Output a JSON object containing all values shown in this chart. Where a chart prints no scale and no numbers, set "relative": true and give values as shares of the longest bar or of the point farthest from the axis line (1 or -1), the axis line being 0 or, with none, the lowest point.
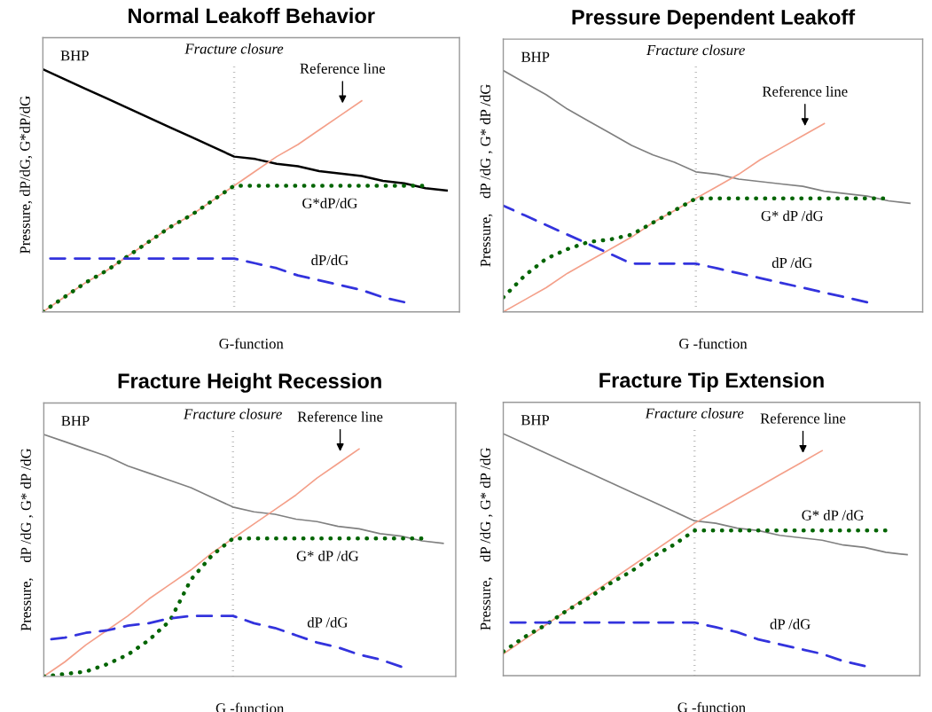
{
  "chart_data": [
    {
      "type": "line",
      "title": "Normal Leakoff Behavior",
      "xlabel": "G-function",
      "ylabel": "Pressure, dP/dG, G*dP/dG",
      "relative": true,
      "grid": false,
      "legend": false,
      "marker": "none",
      "categories": [
        null,
        null,
        null,
        null,
        null,
        null,
        null,
        null,
        null,
        null,
        null,
        null,
        null,
        null,
        null,
        null,
        null,
        null,
        null,
        null
      ],
      "annotations": [
        "Fracture closure"
      ],
      "series": [
        {
          "name": "BHP",
          "color": "#000000",
          "line_style": "solid",
          "values": [
            1.0,
            0.96,
            0.92,
            0.88,
            0.84,
            0.8,
            0.76,
            0.72,
            0.68,
            0.64,
            0.63,
            0.61,
            0.6,
            0.58,
            0.57,
            0.56,
            0.54,
            0.53,
            0.51,
            0.5
          ]
        },
        {
          "name": "Reference line",
          "color": "#f4a08a",
          "line_style": "solid",
          "values": [
            0,
            0.06,
            0.12,
            0.17,
            0.23,
            0.29,
            0.35,
            0.4,
            0.46,
            0.52,
            0.58,
            0.64,
            0.69,
            0.75,
            0.81,
            0.87,
            null,
            null,
            null,
            null
          ]
        },
        {
          "name": "G*dP/dG",
          "color": "#006400",
          "line_style": "dotted",
          "values": [
            0,
            0.06,
            0.12,
            0.17,
            0.23,
            0.29,
            0.35,
            0.4,
            0.46,
            0.52,
            0.52,
            0.52,
            0.52,
            0.52,
            0.52,
            0.52,
            0.52,
            0.52,
            0.52,
            null
          ]
        },
        {
          "name": "dP/dG",
          "color": "#3333dd",
          "line_style": "dashed",
          "values": [
            0.22,
            0.22,
            0.22,
            0.22,
            0.22,
            0.22,
            0.22,
            0.22,
            0.22,
            0.22,
            0.2,
            0.18,
            0.15,
            0.13,
            0.11,
            0.09,
            0.06,
            0.04,
            null,
            null
          ]
        }
      ]
    },
    {
      "type": "line",
      "title": "Pressure Dependent Leakoff",
      "xlabel": "G -function",
      "ylabel": "Pressure,    dP /dG , G* dP /dG",
      "relative": true,
      "grid": false,
      "legend": false,
      "marker": "none",
      "categories": [
        null,
        null,
        null,
        null,
        null,
        null,
        null,
        null,
        null,
        null,
        null,
        null,
        null,
        null,
        null,
        null,
        null,
        null,
        null,
        null
      ],
      "annotations": [
        "Fracture closure"
      ],
      "series": [
        {
          "name": "BHP",
          "color": "#808080",
          "line_style": "solid",
          "values": [
            1.0,
            0.95,
            0.9,
            0.84,
            0.79,
            0.74,
            0.69,
            0.65,
            0.62,
            0.58,
            0.57,
            0.55,
            0.54,
            0.53,
            0.52,
            0.5,
            0.49,
            0.48,
            0.46,
            0.45
          ]
        },
        {
          "name": "Reference line",
          "color": "#f4a08a",
          "line_style": "solid",
          "values": [
            0,
            0.05,
            0.1,
            0.16,
            0.21,
            0.26,
            0.31,
            0.37,
            0.42,
            0.47,
            0.52,
            0.57,
            0.63,
            0.68,
            0.73,
            0.78,
            null,
            null,
            null,
            null
          ]
        },
        {
          "name": "G* dP /dG",
          "color": "#006400",
          "line_style": "dotted",
          "values": [
            0.06,
            0.15,
            0.22,
            0.26,
            0.29,
            0.3,
            0.32,
            0.37,
            0.42,
            0.47,
            0.47,
            0.47,
            0.47,
            0.47,
            0.47,
            0.47,
            0.47,
            0.47,
            0.47,
            null
          ]
        },
        {
          "name": "dP /dG",
          "color": "#3333dd",
          "line_style": "dashed",
          "values": [
            0.44,
            0.4,
            0.36,
            0.32,
            0.28,
            0.24,
            0.2,
            0.2,
            0.2,
            0.2,
            0.18,
            0.16,
            0.14,
            0.12,
            0.1,
            0.08,
            0.06,
            0.04,
            null,
            null
          ]
        }
      ]
    },
    {
      "type": "line",
      "title": "Fracture Height Recession",
      "xlabel": "G -function",
      "ylabel": "Pressure,    dP /dG , G* dP /dG",
      "relative": true,
      "grid": false,
      "legend": false,
      "marker": "none",
      "categories": [
        null,
        null,
        null,
        null,
        null,
        null,
        null,
        null,
        null,
        null,
        null,
        null,
        null,
        null,
        null,
        null,
        null,
        null,
        null,
        null
      ],
      "annotations": [
        "Fracture closure"
      ],
      "series": [
        {
          "name": "BHP",
          "color": "#808080",
          "line_style": "solid",
          "values": [
            1.0,
            0.97,
            0.94,
            0.91,
            0.87,
            0.84,
            0.81,
            0.78,
            0.74,
            0.7,
            0.68,
            0.67,
            0.65,
            0.64,
            0.62,
            0.61,
            0.59,
            0.58,
            0.56,
            0.55
          ]
        },
        {
          "name": "Reference line",
          "color": "#f4a08a",
          "line_style": "solid",
          "values": [
            0,
            0.06,
            0.13,
            0.19,
            0.25,
            0.32,
            0.38,
            0.44,
            0.51,
            0.57,
            0.63,
            0.69,
            0.75,
            0.82,
            0.88,
            0.94,
            null,
            null,
            null,
            null
          ]
        },
        {
          "name": "G* dP /dG",
          "color": "#006400",
          "line_style": "dotted",
          "values": [
            0,
            0.01,
            0.02,
            0.05,
            0.09,
            0.15,
            0.23,
            0.4,
            0.5,
            0.57,
            0.57,
            0.57,
            0.57,
            0.57,
            0.57,
            0.57,
            0.57,
            0.57,
            0.57,
            null
          ]
        },
        {
          "name": "dP /dG",
          "color": "#3333dd",
          "line_style": "dashed",
          "values": [
            0.15,
            0.16,
            0.18,
            0.19,
            0.21,
            0.22,
            0.24,
            0.25,
            0.25,
            0.25,
            0.22,
            0.2,
            0.17,
            0.14,
            0.12,
            0.09,
            0.07,
            0.04,
            null,
            null
          ]
        }
      ]
    },
    {
      "type": "line",
      "title": "Fracture Tip Extension",
      "xlabel": "G -function",
      "ylabel": "Pressure,    dP /dG , G* dP /dG",
      "relative": true,
      "grid": false,
      "legend": false,
      "marker": "none",
      "categories": [
        null,
        null,
        null,
        null,
        null,
        null,
        null,
        null,
        null,
        null,
        null,
        null,
        null,
        null,
        null,
        null,
        null,
        null,
        null,
        null
      ],
      "annotations": [
        "Fracture closure"
      ],
      "series": [
        {
          "name": "BHP",
          "color": "#808080",
          "line_style": "solid",
          "values": [
            1.0,
            0.96,
            0.92,
            0.88,
            0.84,
            0.8,
            0.76,
            0.72,
            0.68,
            0.64,
            0.63,
            0.61,
            0.6,
            0.58,
            0.57,
            0.56,
            0.54,
            0.53,
            0.51,
            0.5
          ]
        },
        {
          "name": "Reference line",
          "color": "#f4a08a",
          "line_style": "solid",
          "values": [
            0.09,
            0.15,
            0.21,
            0.27,
            0.33,
            0.39,
            0.45,
            0.51,
            0.57,
            0.63,
            0.68,
            0.73,
            0.78,
            0.83,
            0.88,
            0.93,
            null,
            null,
            null,
            null
          ]
        },
        {
          "name": "G* dP /dG",
          "color": "#006400",
          "line_style": "dotted",
          "values": [
            0.1,
            0.16,
            0.21,
            0.27,
            0.32,
            0.38,
            0.43,
            0.49,
            0.54,
            0.6,
            0.6,
            0.6,
            0.6,
            0.6,
            0.6,
            0.6,
            0.6,
            0.6,
            0.6,
            null
          ]
        },
        {
          "name": "dP /dG",
          "color": "#3333dd",
          "line_style": "dashed",
          "values": [
            0.22,
            0.22,
            0.22,
            0.22,
            0.22,
            0.22,
            0.22,
            0.22,
            0.22,
            0.22,
            0.2,
            0.18,
            0.15,
            0.13,
            0.11,
            0.09,
            0.06,
            0.04,
            null,
            null
          ]
        }
      ]
    }
  ]
}
